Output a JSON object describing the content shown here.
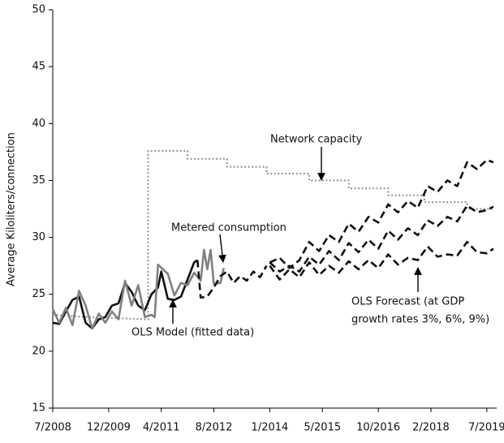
{
  "chart_data": {
    "type": "line",
    "y_label": "Average Kiloliters/connection",
    "xlim": [
      "7/2008",
      "10/2019"
    ],
    "xticks": [
      "7/2008",
      "12/2009",
      "4/2011",
      "8/2012",
      "1/2014",
      "5/2015",
      "10/2016",
      "2/2018",
      "7/2019"
    ],
    "ylim": [
      15,
      50
    ],
    "yticks": [
      15,
      20,
      25,
      30,
      35,
      40,
      45,
      50
    ],
    "grid": false,
    "annotations": [
      [
        "Network capacity"
      ],
      [
        "Metered consumption"
      ],
      [
        "OLS Model (fitted data)"
      ],
      [
        "OLS Forecast (at GDP",
        "growth rates 3%, 6%, 9%)"
      ]
    ],
    "series": [
      {
        "color": "#999999",
        "style": "dotted",
        "x": [
          "7/2008",
          "6/2009",
          "12/2010",
          "12/2010",
          "12/2011",
          "12/2011",
          "12/2012",
          "12/2012",
          "12/2013",
          "12/2013",
          "1/2015",
          "1/2015",
          "1/2016",
          "1/2016",
          "1/2017",
          "1/2017",
          "12/2017",
          "12/2017",
          "1/2019",
          "1/2019",
          "9/2019"
        ],
        "values": [
          23.2,
          23.0,
          22.8,
          37.6,
          37.6,
          36.9,
          36.9,
          36.2,
          36.2,
          35.6,
          35.6,
          35.0,
          35.0,
          34.3,
          34.3,
          33.7,
          33.7,
          33.1,
          33.1,
          32.5,
          32.5
        ]
      },
      {
        "color": "#111111",
        "style": "solid",
        "x": [
          "7/2008",
          "9/2008",
          "11/2008",
          "1/2009",
          "3/2009",
          "5/2009",
          "7/2009",
          "9/2009",
          "11/2009",
          "1/2010",
          "3/2010",
          "5/2010",
          "7/2010",
          "9/2010",
          "11/2010",
          "1/2011",
          "3/2011",
          "4/2011",
          "6/2011",
          "8/2011",
          "10/2011",
          "12/2011",
          "2/2012",
          "3/2012"
        ],
        "values": [
          22.5,
          22.4,
          23.5,
          24.5,
          24.8,
          22.5,
          22.0,
          22.8,
          23.0,
          24.0,
          24.2,
          26.0,
          25.2,
          24.0,
          23.6,
          25.0,
          25.6,
          27.0,
          24.6,
          24.5,
          24.8,
          26.3,
          27.8,
          28.0
        ]
      },
      {
        "color": "#808080",
        "style": "solid",
        "x": [
          "7/2008",
          "9/2008",
          "11/2008",
          "1/2009",
          "3/2009",
          "5/2009",
          "7/2009",
          "9/2009",
          "11/2009",
          "1/2010",
          "3/2010",
          "5/2010",
          "7/2010",
          "9/2010",
          "11/2010",
          "1/2011",
          "2/2011",
          "3/2011",
          "6/2011",
          "8/2011",
          "10/2011",
          "12/2011",
          "2/2012",
          "4/2012",
          "5/2012",
          "6/2012",
          "7/2012",
          "8/2012",
          "10/2012",
          "11/2012"
        ],
        "values": [
          23.7,
          22.5,
          23.8,
          22.3,
          25.3,
          24.0,
          22.0,
          23.3,
          22.5,
          23.5,
          22.8,
          26.2,
          24.0,
          25.8,
          23.0,
          23.2,
          23.0,
          27.6,
          26.8,
          24.9,
          26.0,
          25.8,
          26.9,
          26.2,
          28.9,
          27.2,
          28.9,
          25.9,
          26.0,
          27.3
        ]
      },
      {
        "color": "#111111",
        "style": "dashed",
        "x": [
          "3/2012",
          "4/2012",
          "6/2012",
          "8/2012",
          "10/2012",
          "12/2012",
          "2/2013",
          "4/2013",
          "6/2013",
          "8/2013",
          "10/2013",
          "12/2013"
        ],
        "values": [
          28.0,
          24.7,
          24.8,
          25.6,
          26.6,
          27.0,
          26.0,
          26.6,
          26.2,
          27.0,
          26.5,
          27.5
        ]
      },
      {
        "color": "#111111",
        "style": "dashed",
        "x": [
          "1/2014",
          "4/2014",
          "7/2014",
          "10/2014",
          "1/2015",
          "4/2015",
          "7/2015",
          "10/2015",
          "1/2016",
          "4/2016",
          "7/2016",
          "10/2016",
          "1/2017",
          "4/2017",
          "7/2017",
          "10/2017",
          "1/2018",
          "4/2018",
          "7/2018",
          "10/2018",
          "1/2019",
          "4/2019",
          "7/2019",
          "9/2019"
        ],
        "values": [
          27.8,
          28.2,
          27.3,
          28.0,
          29.6,
          28.8,
          30.2,
          29.6,
          31.2,
          30.5,
          31.8,
          31.3,
          32.9,
          32.2,
          33.2,
          32.6,
          34.5,
          34.0,
          35.0,
          34.5,
          36.6,
          36.0,
          36.8,
          36.6
        ]
      },
      {
        "color": "#111111",
        "style": "dashed",
        "x": [
          "1/2014",
          "4/2014",
          "7/2014",
          "10/2014",
          "1/2015",
          "4/2015",
          "7/2015",
          "10/2015",
          "1/2016",
          "4/2016",
          "7/2016",
          "10/2016",
          "1/2017",
          "4/2017",
          "7/2017",
          "10/2017",
          "1/2018",
          "4/2018",
          "7/2018",
          "10/2018",
          "1/2019",
          "4/2019",
          "7/2019",
          "9/2019"
        ],
        "values": [
          27.8,
          27.0,
          27.5,
          27.0,
          28.3,
          27.6,
          28.8,
          28.0,
          29.5,
          28.7,
          29.8,
          29.0,
          30.6,
          29.8,
          30.8,
          30.2,
          31.5,
          31.0,
          31.8,
          31.4,
          32.8,
          32.2,
          32.4,
          32.7
        ]
      },
      {
        "color": "#111111",
        "style": "dashed",
        "x": [
          "1/2014",
          "4/2014",
          "7/2014",
          "10/2014",
          "1/2015",
          "4/2015",
          "7/2015",
          "10/2015",
          "1/2016",
          "4/2016",
          "7/2016",
          "10/2016",
          "1/2017",
          "4/2017",
          "7/2017",
          "10/2017",
          "1/2018",
          "4/2018",
          "7/2018",
          "10/2018",
          "1/2019",
          "4/2019",
          "7/2019",
          "9/2019"
        ],
        "values": [
          27.5,
          26.3,
          27.2,
          26.5,
          27.8,
          26.7,
          27.5,
          26.9,
          27.9,
          27.2,
          28.0,
          27.3,
          28.5,
          27.6,
          28.2,
          28.0,
          29.2,
          28.3,
          28.5,
          28.4,
          29.6,
          28.7,
          28.6,
          29.0
        ]
      }
    ]
  }
}
